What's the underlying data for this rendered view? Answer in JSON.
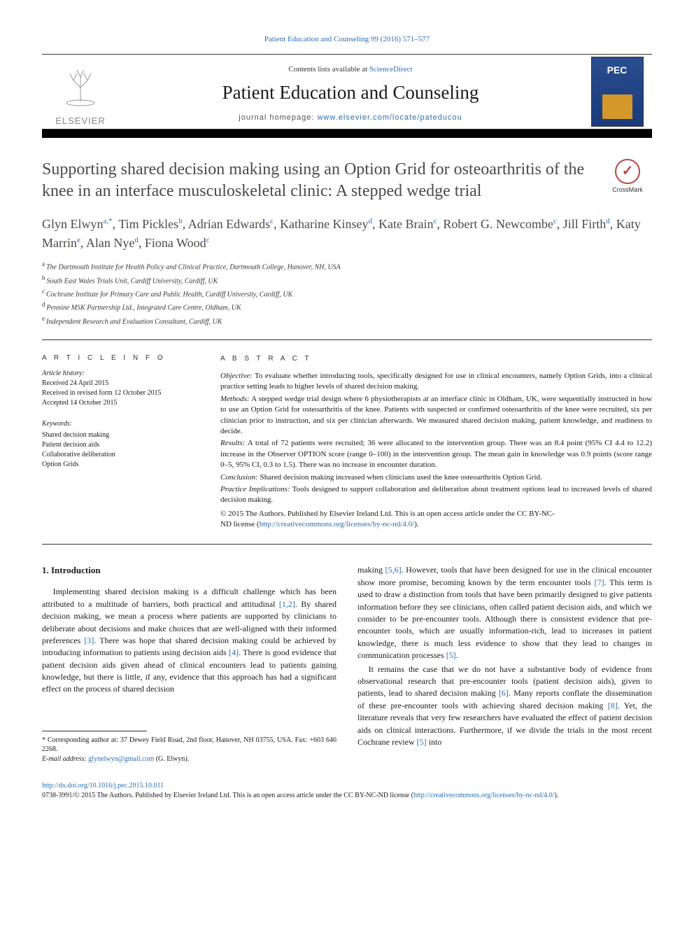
{
  "topLink": {
    "journal": "Patient Education and Counseling",
    "citation": "99 (2016) 571–577"
  },
  "band": {
    "contents": {
      "prefix": "Contents lists available at ",
      "link": "ScienceDirect"
    },
    "journalName": "Patient Education and Counseling",
    "homepage": {
      "prefix": "journal homepage: ",
      "url": "www.elsevier.com/locate/pateducou"
    },
    "publisher": "ELSEVIER"
  },
  "crossmark": "CrossMark",
  "title": "Supporting shared decision making using an Option Grid for osteoarthritis of the knee in an interface musculoskeletal clinic: A stepped wedge trial",
  "authors": [
    {
      "name": "Glyn Elwyn",
      "sup": "a,*"
    },
    {
      "name": "Tim Pickles",
      "sup": "b"
    },
    {
      "name": "Adrian Edwards",
      "sup": "c"
    },
    {
      "name": "Katharine Kinsey",
      "sup": "d"
    },
    {
      "name": "Kate Brain",
      "sup": "c"
    },
    {
      "name": "Robert G. Newcombe",
      "sup": "c"
    },
    {
      "name": "Jill Firth",
      "sup": "d"
    },
    {
      "name": "Katy Marrin",
      "sup": "e"
    },
    {
      "name": "Alan Nye",
      "sup": "d"
    },
    {
      "name": "Fiona Wood",
      "sup": "c"
    }
  ],
  "affiliations": [
    {
      "s": "a",
      "t": "The Dartmouth Institute for Health Policy and Clinical Practice, Dartmouth College, Hanover, NH, USA"
    },
    {
      "s": "b",
      "t": "South East Wales Trials Unit, Cardiff University, Cardiff, UK"
    },
    {
      "s": "c",
      "t": "Cochrane Institute for Primary Care and Public Health, Cardiff University, Cardiff, UK"
    },
    {
      "s": "d",
      "t": "Pennine MSK Partnership Ltd., Integrated Care Centre, Oldham, UK"
    },
    {
      "s": "e",
      "t": "Independent Research and Evaluation Consultant, Cardiff, UK"
    }
  ],
  "articleInfoHeading": "A R T I C L E  I N F O",
  "abstractHeading": "A B S T R A C T",
  "historyLabel": "Article history:",
  "history": [
    "Received 24 April 2015",
    "Received in revised form 12 October 2015",
    "Accepted 14 October 2015"
  ],
  "keywordsLabel": "Keywords:",
  "keywords": [
    "Shared decision making",
    "Patient decision aids",
    "Collaborative deliberation",
    "Option Grids"
  ],
  "abstract": {
    "objective": {
      "label": "Objective:",
      "t": "To evaluate whether introducing tools, specifically designed for use in clinical encounters, namely Option Grids, into a clinical practice setting leads to higher levels of shared decision making."
    },
    "methods": {
      "label": "Methods:",
      "t": "A stepped wedge trial design where 6 physiotherapists at an interface clinic in Oldham, UK, were sequentially instructed in how to use an Option Grid for osteoarthritis of the knee. Patients with suspected or confirmed osteoarthritis of the knee were recruited, six per clinician prior to instruction, and six per clinician afterwards. We measured shared decision making, patient knowledge, and readiness to decide."
    },
    "results": {
      "label": "Results:",
      "t": "A total of 72 patients were recruited; 36 were allocated to the intervention group. There was an 8.4 point (95% CI 4.4 to 12.2) increase in the Observer OPTION score (range 0–100) in the intervention group. The mean gain in knowledge was 0.9 points (score range 0–5, 95% CI, 0.3 to 1.5). There was no increase in encounter duration."
    },
    "conclusion": {
      "label": "Conclusion:",
      "t": "Shared decision making increased when clinicians used the knee osteoarthritis Option Grid."
    },
    "practice": {
      "label": "Practice Implications:",
      "t": "Tools designed to support collaboration and deliberation about treatment options lead to increased levels of shared decision making."
    },
    "copyright": {
      "line1": "© 2015 The Authors. Published by Elsevier Ireland Ltd. This is an open access article under the CC BY-NC-",
      "line2prefix": "ND license (",
      "url": "http://creativecommons.org/licenses/by-nc-nd/4.0/",
      "line2suffix": ")."
    }
  },
  "introHeading": "1. Introduction",
  "col1": {
    "p1a": "Implementing shared decision making is a difficult challenge which has been attributed to a multitude of barriers, both practical and attitudinal ",
    "p1ref1": "[1,2]",
    "p1b": ". By shared decision making, we mean a process where patients are supported by clinicians to deliberate about decisions and make choices that are well-aligned with their informed preferences ",
    "p1ref2": "[3]",
    "p1c": ". There was hope that shared decision making could be achieved by introducing information to patients using decision aids ",
    "p1ref3": "[4]",
    "p1d": ". There is good evidence that patient decision aids given ahead of clinical encounters lead to patients gaining knowledge, but there is little, if any, evidence that this approach has had a significant effect on the process of shared decision"
  },
  "col2": {
    "p1a": "making ",
    "p1ref1": "[5,6]",
    "p1b": ". However, tools that have been designed for use in the clinical encounter show more promise, becoming known by the term encounter tools ",
    "p1ref2": "[7]",
    "p1c": ". This term is used to draw a distinction from tools that have been primarily designed to give patients information before they see clinicians, often called patient decision aids, and which we consider to be pre-encounter tools. Although there is consistent evidence that pre-encounter tools, which are usually information-rich, lead to increases in patient knowledge, there is much less evidence to show that they lead to changes in communication processes ",
    "p1ref3": "[5]",
    "p1d": ".",
    "p2a": "It remains the case that we do not have a substantive body of evidence from observational research that pre-encounter tools (patient decision aids), given to patients, lead to shared decision making ",
    "p2ref1": "[6]",
    "p2b": ". Many reports conflate the dissemination of these pre-encounter tools with achieving shared decision making ",
    "p2ref2": "[8]",
    "p2c": ". Yet, the literature reveals that very few researchers have evaluated the effect of patient decision aids on clinical interactions. Furthermore, if we divide the trials in the most recent Cochrane review ",
    "p2ref3": "[5]",
    "p2d": " into"
  },
  "footnote": {
    "corr": "* Corresponding author at: 37 Dewey Field Road, 2nd floor, Hanover, NH 03755, USA. Fax: +603 646 2268.",
    "emailLabel": "E-mail address: ",
    "email": "glynelwyn@gmail.com",
    "emailSuffix": " (G. Elwyn)."
  },
  "bottom": {
    "doi": "http://dx.doi.org/10.1016/j.pec.2015.10.011",
    "issn": "0738-3991/© 2015 The Authors. Published by Elsevier Ireland Ltd. This is an open access article under the CC BY-NC-ND license (",
    "licenseUrl": "http://creativecommons.org/licenses/by-nc-nd/4.0/",
    "suffix": ")."
  },
  "colors": {
    "link": "#2b6cb0",
    "heading": "#4a4a4a"
  }
}
